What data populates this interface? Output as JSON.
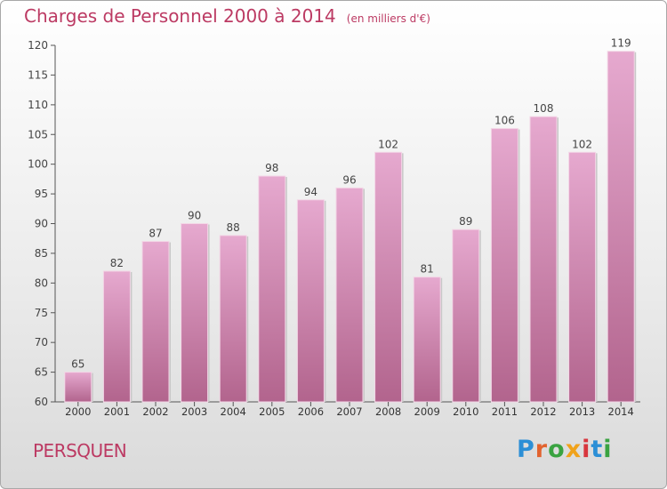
{
  "header": {
    "title": "Charges de Personnel 2000 à 2014",
    "unit": "(en milliers d'€)"
  },
  "footer": {
    "commune": "PERSQUEN",
    "brand": "Proxiti"
  },
  "colors": {
    "title": "#bc3a63",
    "bar_top": "#e6a9cf",
    "bar_bottom": "#b2648d",
    "brand_letters": [
      "#2c8fd6",
      "#e2632f",
      "#3aa341",
      "#f0a21a",
      "#d8363e",
      "#2c8fd6",
      "#3aa341"
    ]
  },
  "chart_data": {
    "type": "bar",
    "title": "Charges de Personnel 2000 à 2014",
    "subtitle": "(en milliers d'€)",
    "xlabel": "",
    "ylabel": "",
    "categories": [
      "2000",
      "2001",
      "2002",
      "2003",
      "2004",
      "2005",
      "2006",
      "2007",
      "2008",
      "2009",
      "2010",
      "2011",
      "2012",
      "2013",
      "2014"
    ],
    "values": [
      65,
      82,
      87,
      90,
      88,
      98,
      94,
      96,
      102,
      81,
      89,
      106,
      108,
      102,
      119
    ],
    "ylim": [
      60,
      120
    ],
    "yticks": [
      60,
      65,
      70,
      75,
      80,
      85,
      90,
      95,
      100,
      105,
      110,
      115,
      120
    ],
    "grid": false,
    "data_labels": true
  }
}
